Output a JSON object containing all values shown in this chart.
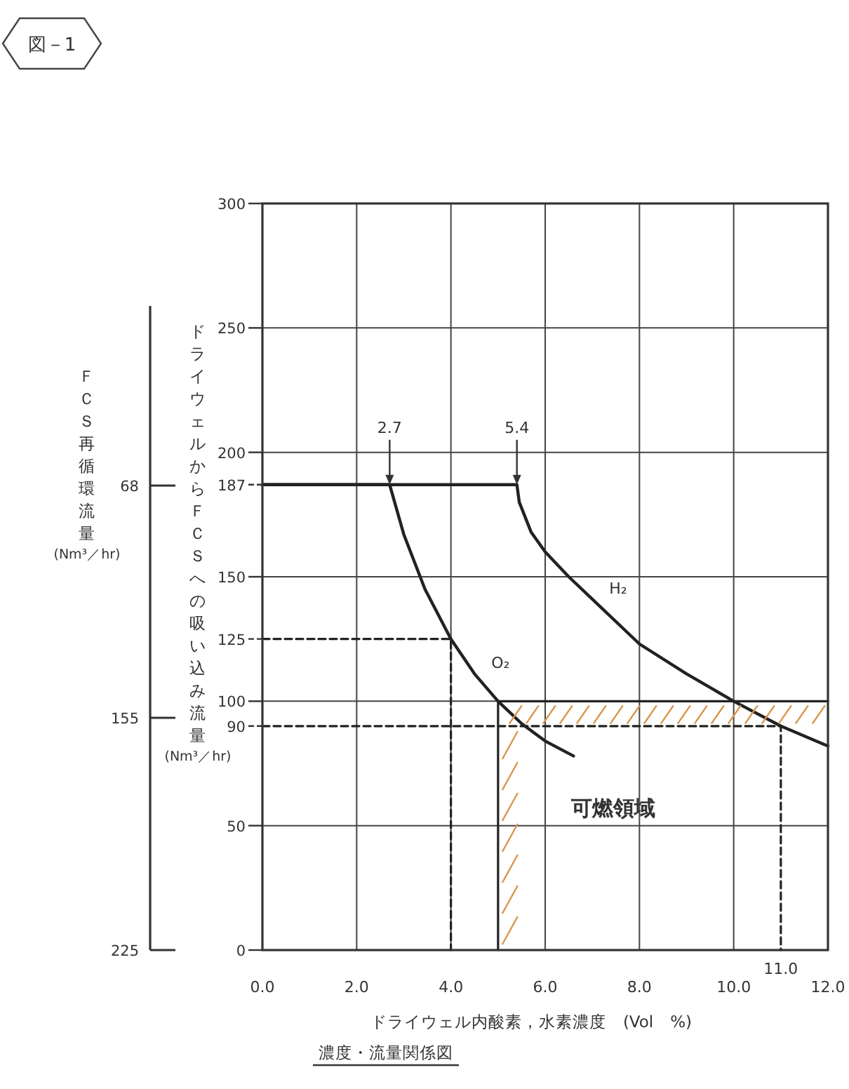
{
  "chart_data": {
    "type": "line",
    "title": "図－1",
    "subtitle": "濃度・流量関係図",
    "xlabel": "ドライウェル内酸素，水素濃度　(Vol　%)",
    "ylabel": "ドライウェルからＦＣＳへの吸い込み流量\n(Nm³／hr)",
    "y2label": "ＦＣＳ再循環流量\n(Nm³／hr)",
    "xlim": [
      0,
      12
    ],
    "ylim": [
      0,
      300
    ],
    "xticks": [
      {
        "value": 0,
        "label": "0.0"
      },
      {
        "value": 2,
        "label": "2.0"
      },
      {
        "value": 4,
        "label": "4.0"
      },
      {
        "value": 6,
        "label": "6.0"
      },
      {
        "value": 8,
        "label": "8.0"
      },
      {
        "value": 10,
        "label": "10.0"
      },
      {
        "value": 12,
        "label": "12.0"
      }
    ],
    "yticks": [
      0,
      50,
      100,
      150,
      200,
      250,
      300,
      90,
      125,
      187
    ],
    "y2_categories": [
      "68",
      "155",
      "225"
    ],
    "grid": true,
    "marker": "none",
    "series": [
      {
        "name": "O₂",
        "color": "#222222",
        "x": [
          0,
          2.7,
          3.0,
          3.45,
          4.0,
          4.5,
          5.0,
          5.5,
          6.0,
          6.6
        ],
        "values": [
          187,
          187,
          167,
          145,
          125,
          111,
          100,
          91,
          84,
          78
        ]
      },
      {
        "name": "H₂",
        "color": "#222222",
        "x": [
          0,
          5.4,
          5.45,
          5.7,
          6.0,
          6.5,
          7.0,
          8.0,
          9.0,
          10.0,
          11.0,
          12.0
        ],
        "values": [
          187,
          187,
          180,
          168,
          160,
          150,
          141,
          123,
          111,
          100,
          90,
          82
        ]
      },
      {
        "color": "#222222",
        "line_style": "dashed",
        "x": [
          0,
          4,
          4
        ],
        "values": [
          125,
          125,
          0
        ]
      },
      {
        "color": "#222222",
        "line_style": "dashed",
        "x": [
          0,
          11,
          11
        ],
        "values": [
          90,
          90,
          0
        ]
      },
      {
        "color": "#222222",
        "line_style": "solid",
        "x": [
          5,
          5,
          12
        ],
        "values": [
          0,
          100,
          100
        ]
      }
    ],
    "annotations": [
      {
        "text": "2.7",
        "x": 2.7,
        "y": 187
      },
      {
        "text": "5.4",
        "x": 5.4,
        "y": 187
      },
      {
        "text": "11.0",
        "x": 11,
        "y": 0
      },
      "可燃領域"
    ]
  }
}
